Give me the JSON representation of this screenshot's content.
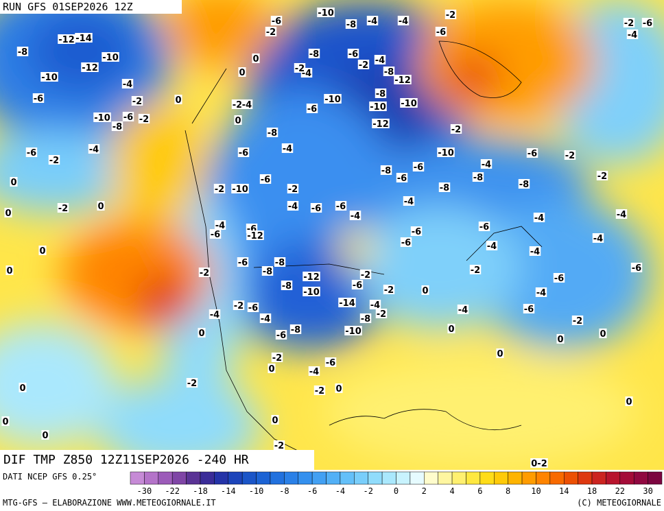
{
  "header": {
    "title": "RUN GFS 01SEP2026 12Z"
  },
  "map_title": "DIF TMP Z850 12Z11SEP2026 -240 HR",
  "source": "DATI NCEP GFS 0.25°",
  "credit_left": "MTG-GFS — ELABORAZIONE WWW.METEOGIORNALE.IT",
  "credit_right": "(C) METEOGIORNALE",
  "map_labels": [
    "-8",
    "-12",
    "-14",
    "-10",
    "-12",
    "-10",
    "-4",
    "-6",
    "-2",
    "0",
    "-10",
    "-6",
    "-8",
    "-2",
    "-6",
    "-4",
    "-2",
    "0",
    "-2",
    "-10",
    "0",
    "0",
    "-4",
    "-6",
    "-6",
    "-12",
    "0",
    "0",
    "-2",
    "-6",
    "-8",
    "-8",
    "-12",
    "-8",
    "-10",
    "-6",
    "-2",
    "-14",
    "-4",
    "-2",
    "-8",
    "-2",
    "-6",
    "-4",
    "-4",
    "-8",
    "-6",
    "-10",
    "0",
    "-2",
    "-6",
    "-4",
    "0",
    "-2",
    "-2",
    "0",
    "0",
    "0",
    "0",
    "0",
    "-2",
    "-6",
    "-10",
    "-2",
    "-8",
    "-4",
    "-4",
    "-2",
    "-6",
    "-2",
    "-6",
    "-4",
    "-8",
    "-6",
    "-2",
    "-4",
    "-8",
    "-12",
    "-4",
    "-2",
    "0",
    "0",
    "-2",
    "-4",
    "-6",
    "-10",
    "-8",
    "-10",
    "-10",
    "-12",
    "-2",
    "0",
    "-8",
    "-4",
    "-6",
    "-10",
    "-4",
    "-6",
    "-2",
    "-8",
    "-6",
    "-6",
    "-6",
    "-2",
    "-8",
    "-8",
    "-8",
    "-2",
    "-4",
    "-6",
    "-6",
    "-4",
    "-4",
    "-6",
    "-6",
    "-6",
    "-4",
    "-4",
    "-4",
    "-4",
    "-4",
    "-2",
    "-6",
    "-6",
    "-4",
    "0",
    "-2",
    "-4",
    "-6",
    "-2",
    "0",
    "0",
    "0",
    "0",
    "0",
    "0-2",
    "-2"
  ],
  "colorbar": {
    "colors": [
      "#c68ad6",
      "#b473c9",
      "#9c5bb9",
      "#7f45a6",
      "#5a3395",
      "#3a2c98",
      "#2433a8",
      "#1c44ba",
      "#1a55c8",
      "#1c63d4",
      "#2171de",
      "#2a80e7",
      "#3490ee",
      "#42a0f3",
      "#52b0f6",
      "#64c0f9",
      "#79cefb",
      "#90dcfc",
      "#aae8fd",
      "#c8f3fe",
      "#e6fbff",
      "#fffccc",
      "#fff6a0",
      "#fff070",
      "#ffe840",
      "#ffdc18",
      "#ffca08",
      "#ffb400",
      "#ff9c00",
      "#ff8400",
      "#f86a00",
      "#ec5004",
      "#de3810",
      "#cc2420",
      "#b8142c",
      "#a40c38",
      "#900840",
      "#7c0640"
    ],
    "labels": [
      "-30",
      "-22",
      "-18",
      "-14",
      "-10",
      "-8",
      "-6",
      "-4",
      "-2",
      "0",
      "2",
      "4",
      "6",
      "8",
      "10",
      "14",
      "18",
      "22",
      "30"
    ]
  }
}
